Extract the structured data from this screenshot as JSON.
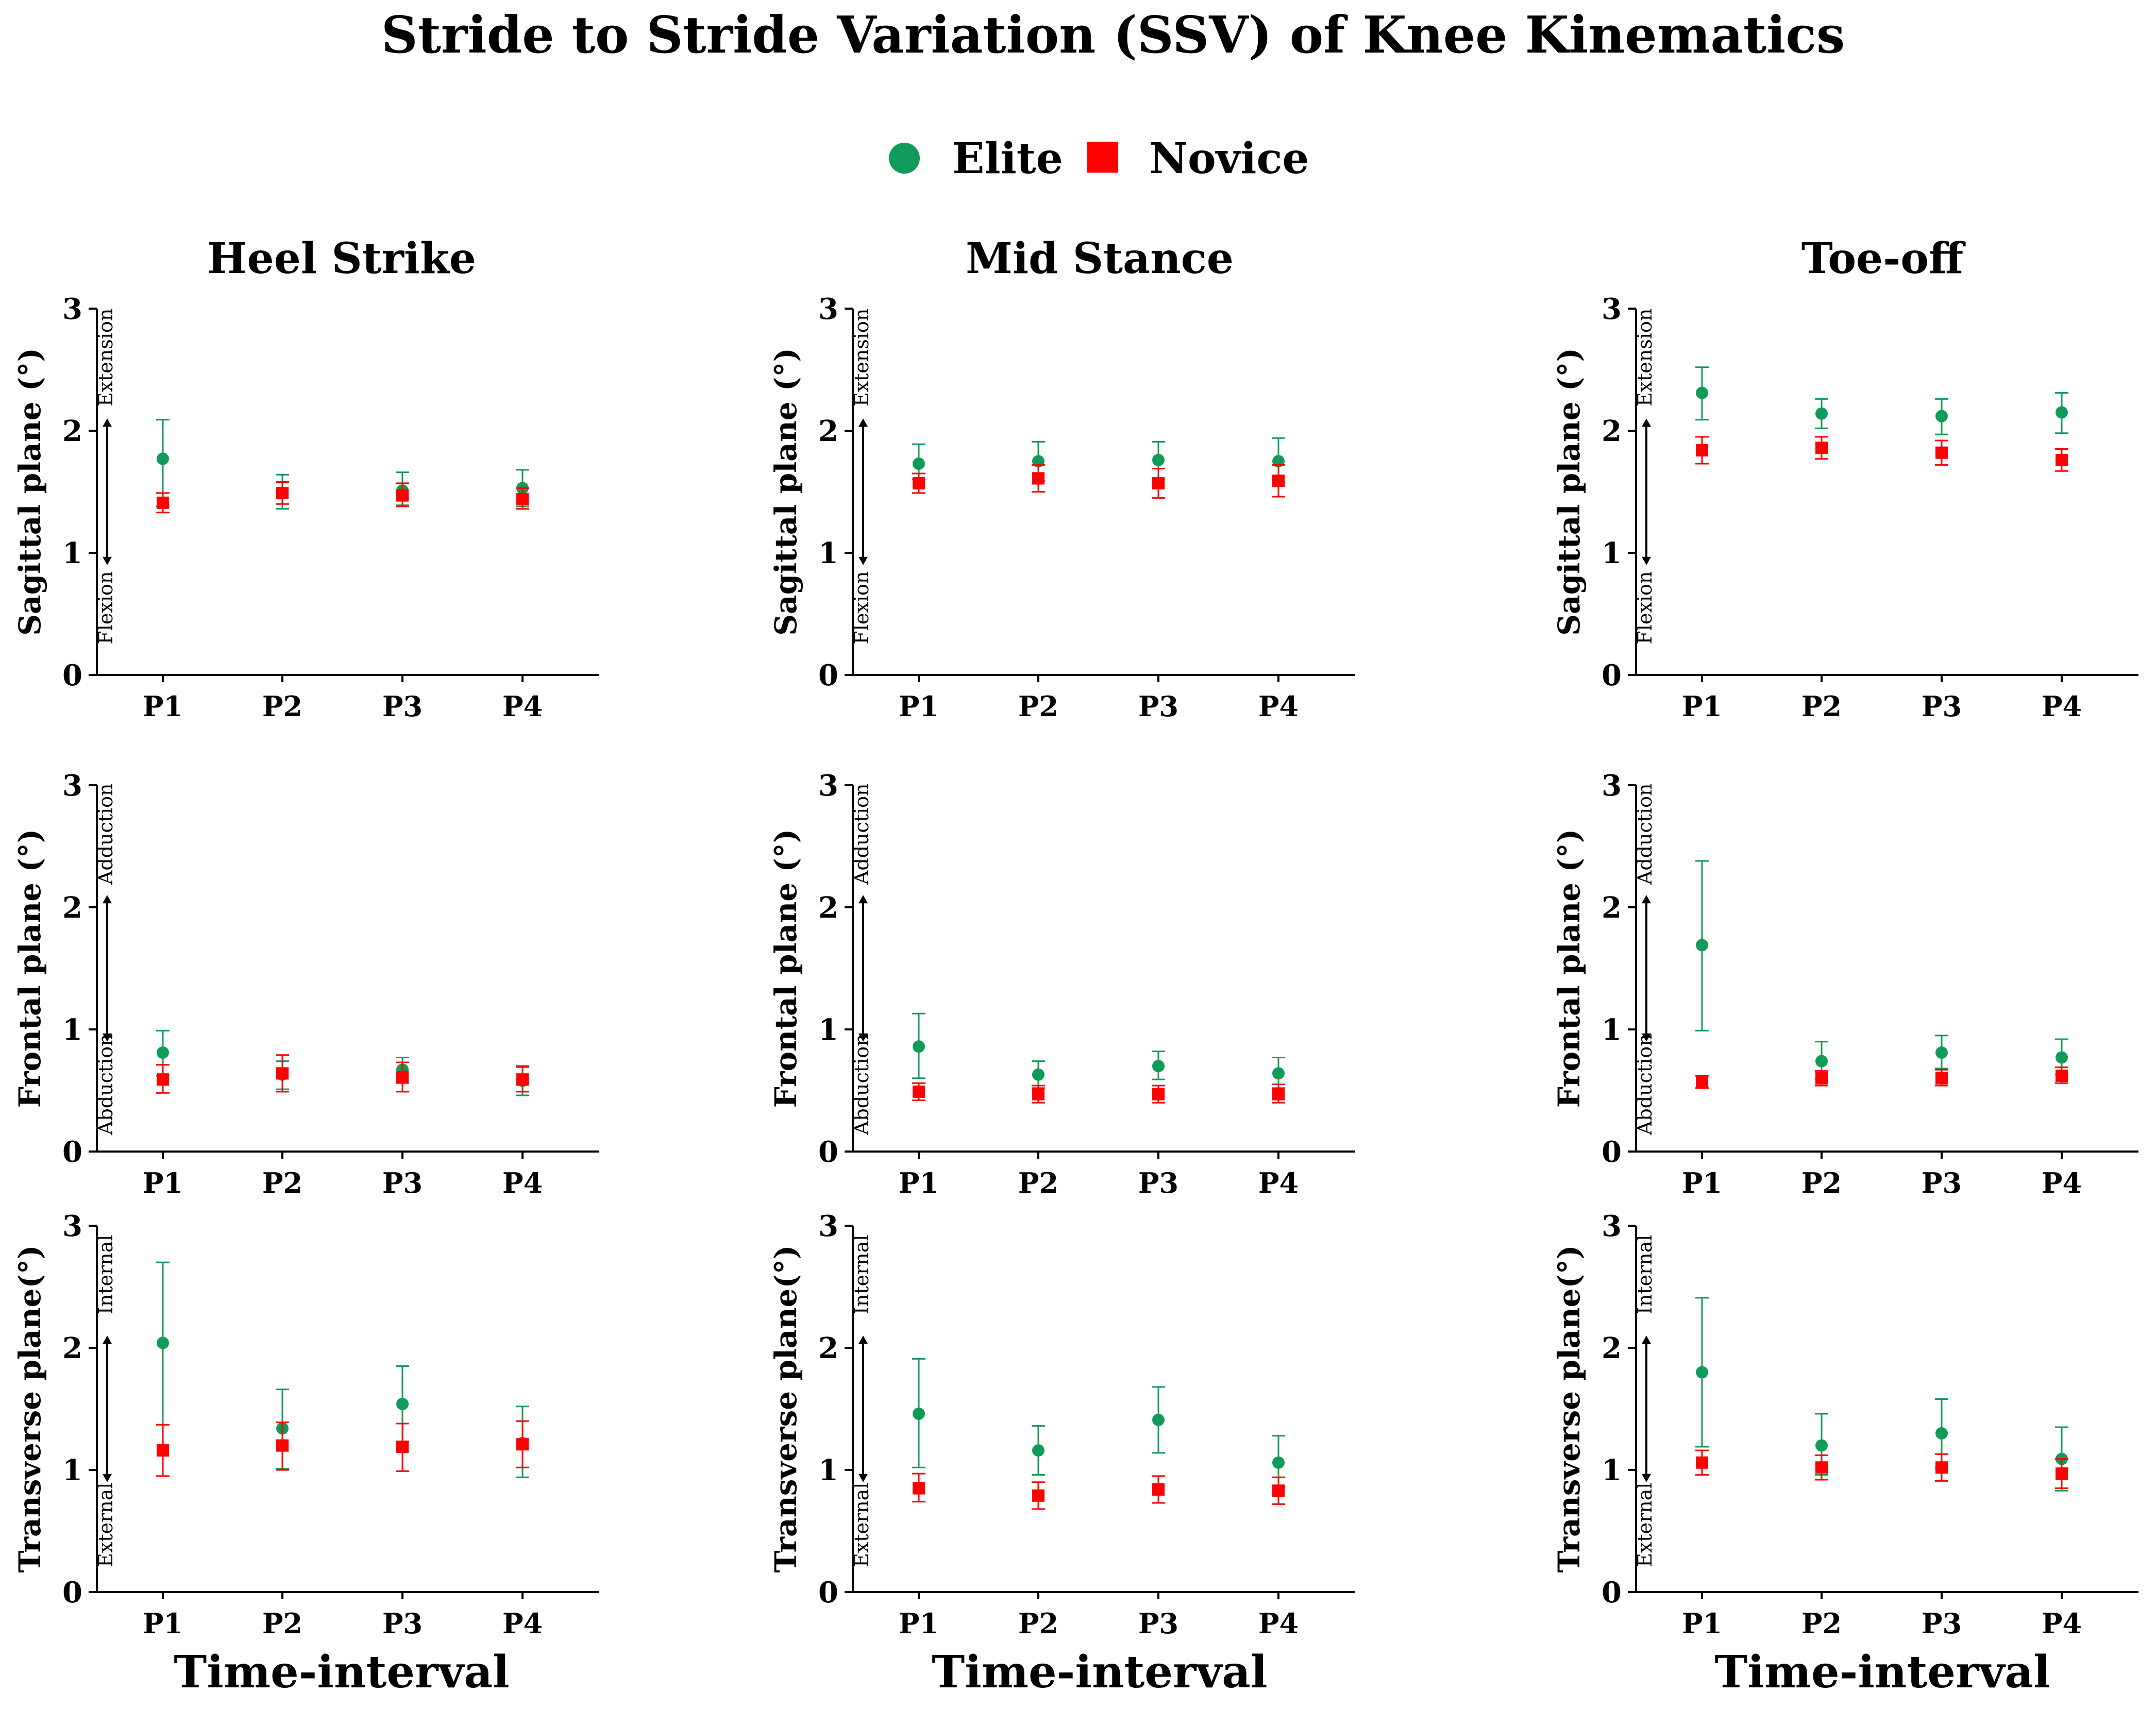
{
  "title": "Stride to Stride Variation (SSV) of Knee Kinematics",
  "legend": [
    {
      "label": "Elite",
      "shape": "circle",
      "color": "#119b5a"
    },
    {
      "label": "Novice",
      "shape": "square",
      "color": "#ff0000"
    }
  ],
  "column_titles": [
    "Heel Strike",
    "Mid Stance",
    "Toe-off"
  ],
  "xlabel": "Time-interval",
  "categories": [
    "P1",
    "P2",
    "P3",
    "P4"
  ],
  "yticks": [
    "0",
    "1",
    "2",
    "3"
  ],
  "row_ylabels": [
    "Sagittal plane (°)",
    "Frontal plane (°)",
    "Transverse plane(°)"
  ],
  "row_annotations": [
    {
      "top": "Extension",
      "bottom": "Flexion"
    },
    {
      "top": "Adduction",
      "bottom": "Abduction"
    },
    {
      "top": "Internal",
      "bottom": "External"
    }
  ],
  "chart_data": [
    {
      "type": "scatter",
      "row": 0,
      "col": 0,
      "title": "Heel Strike",
      "ylabel": "Sagittal plane (°)",
      "ylim": [
        0,
        3
      ],
      "categories": [
        "P1",
        "P2",
        "P3",
        "P4"
      ],
      "series": [
        {
          "name": "Elite",
          "values": [
            1.77,
            1.49,
            1.51,
            1.53
          ],
          "err_low": [
            1.38,
            1.36,
            1.39,
            1.38
          ],
          "err_high": [
            2.09,
            1.64,
            1.66,
            1.68
          ]
        },
        {
          "name": "Novice",
          "values": [
            1.41,
            1.49,
            1.47,
            1.44
          ],
          "err_low": [
            1.33,
            1.4,
            1.38,
            1.36
          ],
          "err_high": [
            1.49,
            1.58,
            1.57,
            1.53
          ]
        }
      ]
    },
    {
      "type": "scatter",
      "row": 0,
      "col": 1,
      "title": "Mid Stance",
      "ylabel": "Sagittal plane (°)",
      "ylim": [
        0,
        3
      ],
      "categories": [
        "P1",
        "P2",
        "P3",
        "P4"
      ],
      "series": [
        {
          "name": "Elite",
          "values": [
            1.73,
            1.75,
            1.76,
            1.75
          ],
          "err_low": [
            1.6,
            1.59,
            1.6,
            1.58
          ],
          "err_high": [
            1.89,
            1.91,
            1.91,
            1.94
          ]
        },
        {
          "name": "Novice",
          "values": [
            1.57,
            1.61,
            1.57,
            1.59
          ],
          "err_low": [
            1.49,
            1.5,
            1.45,
            1.46
          ],
          "err_high": [
            1.65,
            1.72,
            1.69,
            1.72
          ]
        }
      ]
    },
    {
      "type": "scatter",
      "row": 0,
      "col": 2,
      "title": "Toe-off",
      "ylabel": "Sagittal plane (°)",
      "ylim": [
        0,
        3
      ],
      "categories": [
        "P1",
        "P2",
        "P3",
        "P4"
      ],
      "series": [
        {
          "name": "Elite",
          "values": [
            2.31,
            2.14,
            2.12,
            2.15
          ],
          "err_low": [
            2.09,
            2.02,
            1.97,
            1.98
          ],
          "err_high": [
            2.52,
            2.26,
            2.26,
            2.31
          ]
        },
        {
          "name": "Novice",
          "values": [
            1.84,
            1.86,
            1.82,
            1.76
          ],
          "err_low": [
            1.73,
            1.77,
            1.72,
            1.67
          ],
          "err_high": [
            1.95,
            1.95,
            1.92,
            1.85
          ]
        }
      ]
    },
    {
      "type": "scatter",
      "row": 1,
      "col": 0,
      "title": "Heel Strike",
      "ylabel": "Frontal plane (°)",
      "ylim": [
        0,
        3
      ],
      "categories": [
        "P1",
        "P2",
        "P3",
        "P4"
      ],
      "series": [
        {
          "name": "Elite",
          "values": [
            0.81,
            0.63,
            0.67,
            0.58
          ],
          "err_low": [
            0.62,
            0.51,
            0.56,
            0.46
          ],
          "err_high": [
            0.99,
            0.74,
            0.77,
            0.69
          ]
        },
        {
          "name": "Novice",
          "values": [
            0.59,
            0.64,
            0.61,
            0.59
          ],
          "err_low": [
            0.48,
            0.49,
            0.49,
            0.49
          ],
          "err_high": [
            0.71,
            0.79,
            0.73,
            0.7
          ]
        }
      ]
    },
    {
      "type": "scatter",
      "row": 1,
      "col": 1,
      "title": "Mid Stance",
      "ylabel": "Frontal plane (°)",
      "ylim": [
        0,
        3
      ],
      "categories": [
        "P1",
        "P2",
        "P3",
        "P4"
      ],
      "series": [
        {
          "name": "Elite",
          "values": [
            0.86,
            0.63,
            0.7,
            0.64
          ],
          "err_low": [
            0.6,
            0.52,
            0.59,
            0.52
          ],
          "err_high": [
            1.13,
            0.74,
            0.82,
            0.77
          ]
        },
        {
          "name": "Novice",
          "values": [
            0.49,
            0.47,
            0.47,
            0.47
          ],
          "err_low": [
            0.42,
            0.4,
            0.4,
            0.4
          ],
          "err_high": [
            0.56,
            0.54,
            0.54,
            0.55
          ]
        }
      ]
    },
    {
      "type": "scatter",
      "row": 1,
      "col": 2,
      "title": "Toe-off",
      "ylabel": "Frontal plane (°)",
      "ylim": [
        0,
        3
      ],
      "categories": [
        "P1",
        "P2",
        "P3",
        "P4"
      ],
      "series": [
        {
          "name": "Elite",
          "values": [
            1.69,
            0.74,
            0.81,
            0.77
          ],
          "err_low": [
            0.99,
            0.59,
            0.68,
            0.63
          ],
          "err_high": [
            2.38,
            0.9,
            0.95,
            0.92
          ]
        },
        {
          "name": "Novice",
          "values": [
            0.57,
            0.6,
            0.6,
            0.62
          ],
          "err_low": [
            0.52,
            0.54,
            0.54,
            0.56
          ],
          "err_high": [
            0.62,
            0.66,
            0.67,
            0.69
          ]
        }
      ]
    },
    {
      "type": "scatter",
      "row": 2,
      "col": 0,
      "title": "Heel Strike",
      "ylabel": "Transverse plane(°)",
      "ylim": [
        0,
        3
      ],
      "categories": [
        "P1",
        "P2",
        "P3",
        "P4"
      ],
      "series": [
        {
          "name": "Elite",
          "values": [
            2.04,
            1.34,
            1.54,
            1.22
          ],
          "err_low": [
            1.37,
            1.01,
            1.23,
            0.94
          ],
          "err_high": [
            2.7,
            1.66,
            1.85,
            1.52
          ]
        },
        {
          "name": "Novice",
          "values": [
            1.16,
            1.2,
            1.19,
            1.21
          ],
          "err_low": [
            0.95,
            1.0,
            0.99,
            1.02
          ],
          "err_high": [
            1.37,
            1.39,
            1.38,
            1.4
          ]
        }
      ]
    },
    {
      "type": "scatter",
      "row": 2,
      "col": 1,
      "title": "Mid Stance",
      "ylabel": "Transverse plane(°)",
      "ylim": [
        0,
        3
      ],
      "categories": [
        "P1",
        "P2",
        "P3",
        "P4"
      ],
      "series": [
        {
          "name": "Elite",
          "values": [
            1.46,
            1.16,
            1.41,
            1.06
          ],
          "err_low": [
            1.02,
            0.96,
            1.14,
            0.86
          ],
          "err_high": [
            1.91,
            1.36,
            1.68,
            1.28
          ]
        },
        {
          "name": "Novice",
          "values": [
            0.85,
            0.79,
            0.84,
            0.83
          ],
          "err_low": [
            0.74,
            0.68,
            0.73,
            0.72
          ],
          "err_high": [
            0.97,
            0.9,
            0.95,
            0.94
          ]
        }
      ]
    },
    {
      "type": "scatter",
      "row": 2,
      "col": 2,
      "title": "Toe-off",
      "ylabel": "Transverse plane(°)",
      "ylim": [
        0,
        3
      ],
      "categories": [
        "P1",
        "P2",
        "P3",
        "P4"
      ],
      "series": [
        {
          "name": "Elite",
          "values": [
            1.8,
            1.2,
            1.3,
            1.09
          ],
          "err_low": [
            1.19,
            0.96,
            1.02,
            0.83
          ],
          "err_high": [
            2.41,
            1.46,
            1.58,
            1.35
          ]
        },
        {
          "name": "Novice",
          "values": [
            1.06,
            1.02,
            1.02,
            0.97
          ],
          "err_low": [
            0.96,
            0.92,
            0.91,
            0.85
          ],
          "err_high": [
            1.16,
            1.12,
            1.13,
            1.09
          ]
        }
      ]
    }
  ]
}
